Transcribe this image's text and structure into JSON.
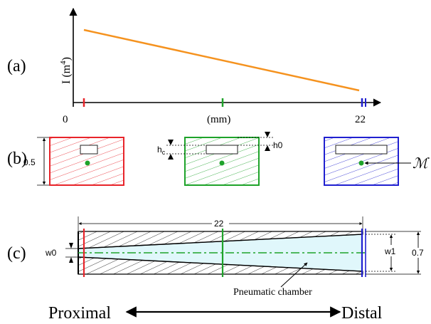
{
  "panel_labels": {
    "a": "(a)",
    "b": "(b)",
    "c": "(c)"
  },
  "plot": {
    "ylabel_base": "I (m",
    "ylabel_exp": "4",
    "ylabel_close": ")",
    "x_start": "0",
    "x_unit": "(mm)",
    "x_end": "22"
  },
  "sections": {
    "height_label": "0.5",
    "hc_label": "h",
    "hc_sub": "c",
    "h0_label": "h0",
    "moment_symbol": "ℳ"
  },
  "finger": {
    "length_label": "22",
    "w0_label": "w0",
    "w1_label": "w1",
    "height_label": "0.7",
    "chamber_label": "Pneumatic chamber"
  },
  "bottom": {
    "proximal": "Proximal",
    "distal": "Distal"
  },
  "colors": {
    "proximal": "#e8242a",
    "middle": "#1ea32a",
    "distal": "#2020d0",
    "curve": "#f5921e",
    "chamber": "#e0f7fb"
  }
}
